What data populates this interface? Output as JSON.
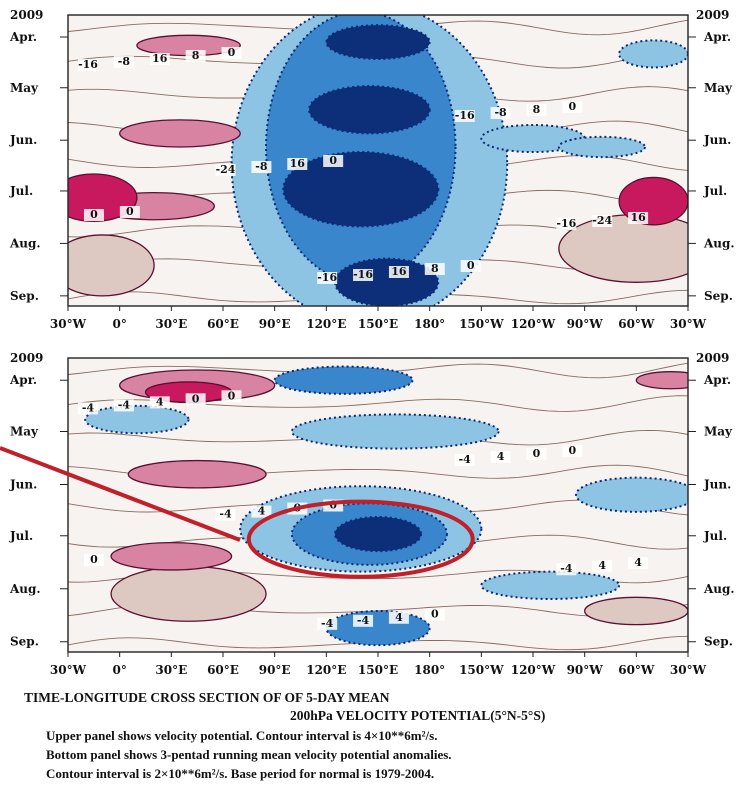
{
  "chart_data": {
    "type": "heatmap",
    "x_ticks": [
      "30°W",
      "0°",
      "30°E",
      "60°E",
      "90°E",
      "120°E",
      "150°E",
      "180°",
      "150°W",
      "120°W",
      "90°W",
      "60°W",
      "30°W"
    ],
    "y_year": "2009",
    "y_ticks": [
      "Apr.",
      "May",
      "Jun.",
      "Jul.",
      "Aug.",
      "Sep."
    ],
    "panels": [
      {
        "name": "upper",
        "contour_labels": [
          "-16",
          "-16",
          "-16",
          "-24",
          "-16",
          "-8",
          "-16",
          "-24",
          "-8",
          "-8",
          "16",
          "16",
          "16",
          "16",
          "8",
          "8",
          "8",
          "0",
          "0",
          "0",
          "0",
          "0",
          "0"
        ],
        "fields": [
          {
            "sign": -1,
            "level": 3,
            "lon": 150,
            "day": 8,
            "rx": 30,
            "ry": 10
          },
          {
            "sign": -1,
            "level": 3,
            "lon": 145,
            "day": 48,
            "rx": 35,
            "ry": 14
          },
          {
            "sign": -1,
            "level": 3,
            "lon": 140,
            "day": 95,
            "rx": 45,
            "ry": 22
          },
          {
            "sign": -1,
            "level": 3,
            "lon": 155,
            "day": 150,
            "rx": 30,
            "ry": 14
          },
          {
            "sign": -1,
            "level": 2,
            "lon": 140,
            "day": 70,
            "rx": 55,
            "ry": 80
          },
          {
            "sign": -1,
            "level": 1,
            "lon": 145,
            "day": 80,
            "rx": 80,
            "ry": 95
          },
          {
            "sign": 1,
            "level": 2,
            "lon": 40,
            "day": 10,
            "rx": 30,
            "ry": 6
          },
          {
            "sign": 1,
            "level": 2,
            "lon": 35,
            "day": 62,
            "rx": 35,
            "ry": 8
          },
          {
            "sign": 1,
            "level": 3,
            "lon": -15,
            "day": 100,
            "rx": 25,
            "ry": 14
          },
          {
            "sign": 1,
            "level": 2,
            "lon": 20,
            "day": 105,
            "rx": 35,
            "ry": 8
          },
          {
            "sign": 1,
            "level": 1,
            "lon": -10,
            "day": 140,
            "rx": 30,
            "ry": 18
          },
          {
            "sign": 1,
            "level": 3,
            "lon": 310,
            "day": 102,
            "rx": 20,
            "ry": 14
          },
          {
            "sign": 1,
            "level": 1,
            "lon": 300,
            "day": 130,
            "rx": 45,
            "ry": 20
          },
          {
            "sign": -1,
            "level": 1,
            "lon": 310,
            "day": 15,
            "rx": 20,
            "ry": 8
          },
          {
            "sign": -1,
            "level": 1,
            "lon": 240,
            "day": 65,
            "rx": 30,
            "ry": 8
          },
          {
            "sign": -1,
            "level": 1,
            "lon": 280,
            "day": 70,
            "rx": 25,
            "ry": 6
          }
        ]
      },
      {
        "name": "lower",
        "contour_labels": [
          "-4",
          "-4",
          "-4",
          "-4",
          "-4",
          "-4",
          "-4",
          "4",
          "4",
          "4",
          "4",
          "4",
          "4",
          "0",
          "0",
          "0",
          "0",
          "0",
          "0",
          "0",
          "0"
        ],
        "fields": [
          {
            "sign": -1,
            "level": 3,
            "lon": 150,
            "day": 95,
            "rx": 25,
            "ry": 10
          },
          {
            "sign": -1,
            "level": 2,
            "lon": 145,
            "day": 95,
            "rx": 45,
            "ry": 18
          },
          {
            "sign": -1,
            "level": 1,
            "lon": 140,
            "day": 92,
            "rx": 70,
            "ry": 25
          },
          {
            "sign": -1,
            "level": 2,
            "lon": 130,
            "day": 5,
            "rx": 40,
            "ry": 8
          },
          {
            "sign": -1,
            "level": 1,
            "lon": 160,
            "day": 35,
            "rx": 60,
            "ry": 10
          },
          {
            "sign": -1,
            "level": 2,
            "lon": 150,
            "day": 150,
            "rx": 30,
            "ry": 10
          },
          {
            "sign": -1,
            "level": 1,
            "lon": 300,
            "day": 72,
            "rx": 35,
            "ry": 10
          },
          {
            "sign": -1,
            "level": 1,
            "lon": 10,
            "day": 28,
            "rx": 30,
            "ry": 8
          },
          {
            "sign": -1,
            "level": 1,
            "lon": 250,
            "day": 125,
            "rx": 40,
            "ry": 8
          },
          {
            "sign": 1,
            "level": 3,
            "lon": 40,
            "day": 12,
            "rx": 25,
            "ry": 6
          },
          {
            "sign": 1,
            "level": 2,
            "lon": 45,
            "day": 8,
            "rx": 45,
            "ry": 9
          },
          {
            "sign": 1,
            "level": 2,
            "lon": 45,
            "day": 60,
            "rx": 40,
            "ry": 8
          },
          {
            "sign": 1,
            "level": 2,
            "lon": 30,
            "day": 108,
            "rx": 35,
            "ry": 8
          },
          {
            "sign": 1,
            "level": 1,
            "lon": 40,
            "day": 130,
            "rx": 45,
            "ry": 16
          },
          {
            "sign": 1,
            "level": 2,
            "lon": 320,
            "day": 5,
            "rx": 20,
            "ry": 5
          },
          {
            "sign": 1,
            "level": 1,
            "lon": 300,
            "day": 140,
            "rx": 30,
            "ry": 8
          }
        ]
      }
    ],
    "annotation": {
      "type": "ellipse",
      "color": "#c0202a",
      "lon": 140,
      "day": 98,
      "rx": 65,
      "ry": 22
    }
  },
  "colors": {
    "neg1": "#8ec4e3",
    "neg2": "#3a86cc",
    "neg3": "#0d2f7a",
    "pos1": "#ddc9c1",
    "pos2": "#d983a2",
    "pos3": "#c8195e",
    "annotation": "#c0202a"
  },
  "caption": {
    "title": "TIME-LONGITUDE CROSS SECTION OF OF 5-DAY MEAN",
    "subtitle": "200hPa VELOCITY POTENTIAL(5°N-5°S)",
    "line1": "Upper panel shows velocity potential. Contour interval is 4×10**6m²/s.",
    "line2": "Bottom panel shows 3-pentad running mean velocity potential anomalies.",
    "line3": "Contour interval is 2×10**6m²/s. Base period for normal is 1979-2004."
  }
}
